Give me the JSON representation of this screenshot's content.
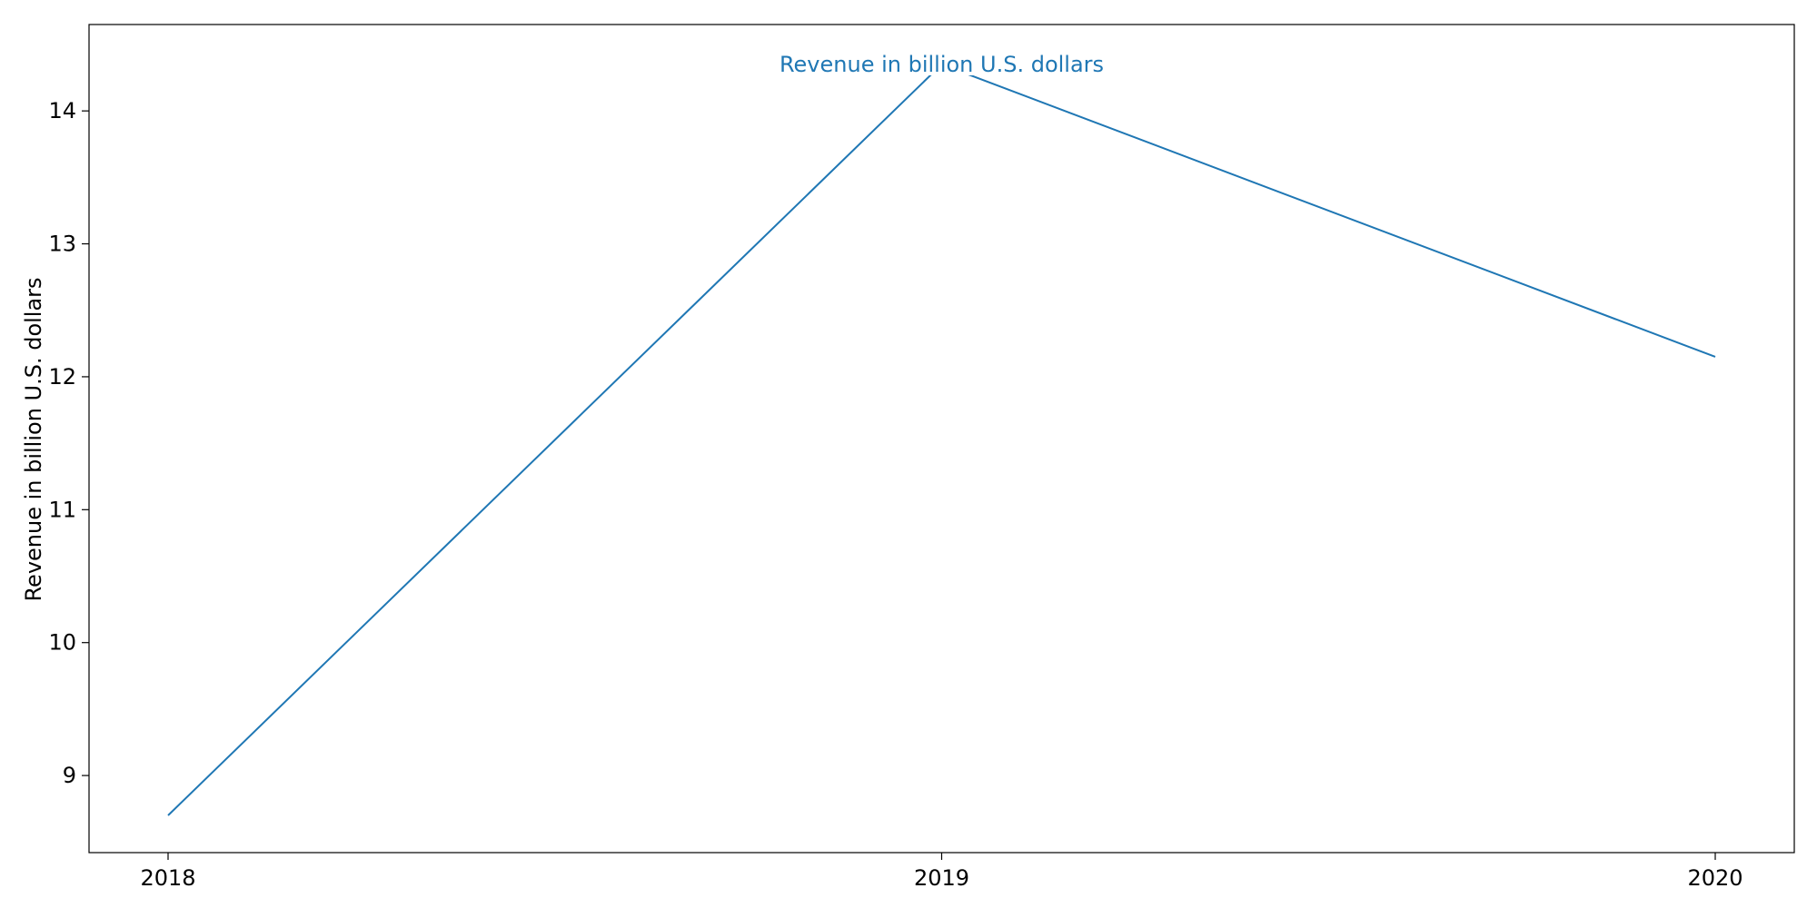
{
  "chart_data": {
    "type": "line",
    "x": [
      "2018",
      "2019",
      "2020"
    ],
    "series": [
      {
        "values": [
          8.7,
          14.35,
          12.15
        ]
      }
    ],
    "title": "",
    "xlabel": "",
    "ylabel": "Revenue in billion U.S. dollars",
    "annotation": "Revenue in billion U.S. dollars",
    "yticks": [
      9,
      10,
      11,
      12,
      13,
      14
    ],
    "ylim": [
      8.42,
      14.65
    ],
    "grid": false,
    "colors": {
      "line": "#1f77b4",
      "axes": "#000000",
      "annotation": "#1f77b4"
    }
  }
}
